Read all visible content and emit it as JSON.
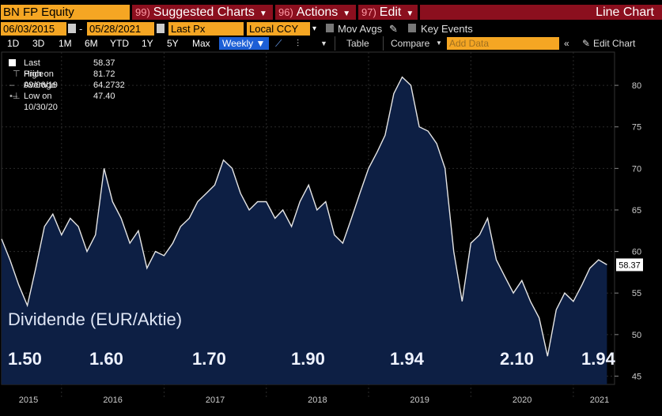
{
  "toolbar": {
    "ticker": "BN FP Equity",
    "suggested": {
      "num": "99)",
      "label": "Suggested Charts"
    },
    "actions": {
      "num": "96)",
      "label": "Actions"
    },
    "edit": {
      "num": "97)",
      "label": "Edit"
    },
    "chart_type": "Line Chart"
  },
  "row2": {
    "start_date": "06/03/2015",
    "end_date": "05/28/2021",
    "separator": "-",
    "field": "Last Px",
    "currency": "Local CCY",
    "mov_avgs": "Mov Avgs",
    "key_events": "Key Events"
  },
  "row3": {
    "ranges": [
      "1D",
      "3D",
      "1M",
      "6M",
      "YTD",
      "1Y",
      "5Y",
      "Max"
    ],
    "frequency": "Weekly",
    "table": "Table",
    "compare": "Compare",
    "add_data_placeholder": "Add Data",
    "edit_chart": "Edit Chart"
  },
  "legend": {
    "last_price": {
      "label": "Last Price",
      "value": "58.37"
    },
    "high": {
      "label": "High on 09/06/19",
      "value": "81.72"
    },
    "average": {
      "label": "Average",
      "value": "64.2732"
    },
    "low": {
      "label": "Low on 10/30/20",
      "value": "47.40"
    }
  },
  "overlay": {
    "title": "Dividende (EUR/Aktie)",
    "values": [
      "1.50",
      "1.60",
      "1.70",
      "1.90",
      "1.94",
      "2.10",
      "1.94"
    ]
  },
  "colors": {
    "line": "#e6e6e6",
    "fill": "#0d1f44",
    "accent": "#f5a623",
    "red": "#8b0f1e",
    "blue": "#1c5fd6"
  },
  "chart_data": {
    "type": "area",
    "ylim": [
      44,
      84
    ],
    "yticks": [
      45,
      50,
      55,
      60,
      65,
      70,
      75,
      80
    ],
    "xticks": [
      "2015",
      "2016",
      "2017",
      "2018",
      "2019",
      "2020",
      "2021"
    ],
    "last_value_label": "58.37",
    "series": [
      {
        "x": [
          "2015-06",
          "2015-07",
          "2015-08",
          "2015-09",
          "2015-10",
          "2015-11",
          "2015-12",
          "2016-01",
          "2016-02",
          "2016-03",
          "2016-04",
          "2016-05",
          "2016-06",
          "2016-07",
          "2016-08",
          "2016-09",
          "2016-10",
          "2016-11",
          "2016-12",
          "2017-01",
          "2017-02",
          "2017-03",
          "2017-04",
          "2017-05",
          "2017-06",
          "2017-07",
          "2017-08",
          "2017-09",
          "2017-10",
          "2017-11",
          "2017-12",
          "2018-01",
          "2018-02",
          "2018-03",
          "2018-04",
          "2018-05",
          "2018-06",
          "2018-07",
          "2018-08",
          "2018-09",
          "2018-10",
          "2018-11",
          "2018-12",
          "2019-01",
          "2019-02",
          "2019-03",
          "2019-04",
          "2019-05",
          "2019-06",
          "2019-07",
          "2019-08",
          "2019-09",
          "2019-10",
          "2019-11",
          "2019-12",
          "2020-01",
          "2020-02",
          "2020-03",
          "2020-04",
          "2020-05",
          "2020-06",
          "2020-07",
          "2020-08",
          "2020-09",
          "2020-10",
          "2020-11",
          "2020-12",
          "2021-01",
          "2021-02",
          "2021-03",
          "2021-04",
          "2021-05"
        ],
        "values": [
          61.5,
          59,
          56,
          53.5,
          58,
          63,
          64.5,
          62,
          64,
          63,
          60,
          62,
          70,
          66,
          64,
          61,
          62.5,
          58,
          60,
          59.5,
          61,
          63,
          64,
          66,
          67,
          68,
          71,
          70,
          67,
          65,
          66,
          66,
          64,
          65,
          63,
          66,
          68,
          65,
          66,
          62,
          61,
          64,
          67,
          70,
          72,
          74,
          79,
          81,
          80,
          75,
          74.5,
          73,
          70,
          60,
          54,
          61,
          62,
          64,
          59,
          57,
          55,
          56.5,
          54,
          52,
          47.4,
          53,
          55,
          54,
          56,
          58,
          59,
          58.4
        ]
      }
    ]
  }
}
